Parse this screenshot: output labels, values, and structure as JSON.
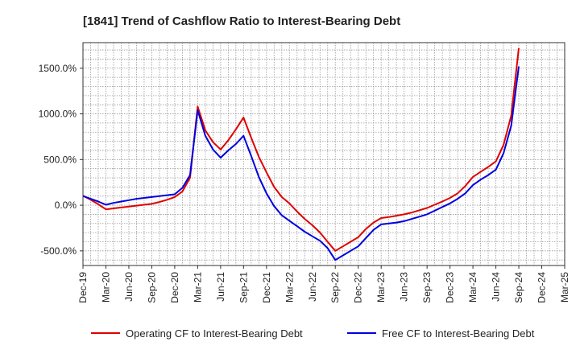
{
  "chart_data": {
    "type": "line",
    "title": "[1841]  Trend of Cashflow Ratio to Interest-Bearing Debt",
    "xlabel": "",
    "ylabel": "",
    "x": [
      "Dec-19",
      "Mar-20",
      "Jun-20",
      "Sep-20",
      "Dec-20",
      "Jan-21",
      "Feb-21",
      "Mar-21",
      "Apr-21",
      "May-21",
      "Jun-21",
      "Sep-21",
      "Dec-21",
      "Mar-22",
      "Jun-22",
      "Sep-22",
      "Dec-22",
      "Mar-23",
      "Jun-23",
      "Sep-23",
      "Dec-23",
      "Mar-24",
      "Jun-24",
      "Jul-24",
      "Aug-24",
      "Sep-24"
    ],
    "x_tick_labels": [
      "Dec-19",
      "Mar-20",
      "Jun-20",
      "Sep-20",
      "Dec-20",
      "Mar-21",
      "Jun-21",
      "Sep-21",
      "Dec-21",
      "Mar-22",
      "Jun-22",
      "Sep-22",
      "Dec-22",
      "Mar-23",
      "Jun-23",
      "Sep-23",
      "Dec-23",
      "Mar-24",
      "Jun-24",
      "Sep-24",
      "Dec-24",
      "Mar-25"
    ],
    "x_range": [
      "Dec-19",
      "Mar-25"
    ],
    "y_ticks": [
      -500,
      0,
      500,
      1000,
      1500
    ],
    "y_tick_labels": [
      "-500.0%",
      "0.0%",
      "500.0%",
      "1000.0%",
      "1500.0%"
    ],
    "ylim": [
      -660,
      1780
    ],
    "grid": true,
    "legend_position": "bottom",
    "series": [
      {
        "name": "Operating CF to Interest-Bearing Debt",
        "color": "#e00000",
        "points": [
          [
            "Dec-19",
            105
          ],
          [
            "Jan-20",
            60
          ],
          [
            "Feb-20",
            10
          ],
          [
            "Mar-20",
            -45
          ],
          [
            "Apr-20",
            -35
          ],
          [
            "May-20",
            -25
          ],
          [
            "Jun-20",
            -15
          ],
          [
            "Jul-20",
            -5
          ],
          [
            "Aug-20",
            5
          ],
          [
            "Sep-20",
            15
          ],
          [
            "Oct-20",
            35
          ],
          [
            "Nov-20",
            60
          ],
          [
            "Dec-20",
            90
          ],
          [
            "Jan-21",
            150
          ],
          [
            "Feb-21",
            300
          ],
          [
            "Mar-21",
            1080
          ],
          [
            "Apr-21",
            820
          ],
          [
            "May-21",
            690
          ],
          [
            "Jun-21",
            610
          ],
          [
            "Jul-21",
            710
          ],
          [
            "Aug-21",
            830
          ],
          [
            "Sep-21",
            960
          ],
          [
            "Oct-21",
            740
          ],
          [
            "Nov-21",
            530
          ],
          [
            "Dec-21",
            360
          ],
          [
            "Jan-22",
            200
          ],
          [
            "Feb-22",
            90
          ],
          [
            "Mar-22",
            20
          ],
          [
            "Apr-22",
            -70
          ],
          [
            "May-22",
            -150
          ],
          [
            "Jun-22",
            -220
          ],
          [
            "Jul-22",
            -300
          ],
          [
            "Aug-22",
            -400
          ],
          [
            "Sep-22",
            -500
          ],
          [
            "Oct-22",
            -450
          ],
          [
            "Nov-22",
            -400
          ],
          [
            "Dec-22",
            -350
          ],
          [
            "Jan-23",
            -260
          ],
          [
            "Feb-23",
            -190
          ],
          [
            "Mar-23",
            -140
          ],
          [
            "Apr-23",
            -130
          ],
          [
            "May-23",
            -115
          ],
          [
            "Jun-23",
            -100
          ],
          [
            "Jul-23",
            -80
          ],
          [
            "Aug-23",
            -55
          ],
          [
            "Sep-23",
            -30
          ],
          [
            "Oct-23",
            5
          ],
          [
            "Nov-23",
            40
          ],
          [
            "Dec-23",
            80
          ],
          [
            "Jan-24",
            130
          ],
          [
            "Feb-24",
            210
          ],
          [
            "Mar-24",
            310
          ],
          [
            "Apr-24",
            365
          ],
          [
            "May-24",
            420
          ],
          [
            "Jun-24",
            480
          ],
          [
            "Jul-24",
            660
          ],
          [
            "Aug-24",
            980
          ],
          [
            "Sep-24",
            1720
          ]
        ]
      },
      {
        "name": "Free CF to Interest-Bearing Debt",
        "color": "#0000e0",
        "points": [
          [
            "Dec-19",
            100
          ],
          [
            "Jan-20",
            70
          ],
          [
            "Feb-20",
            40
          ],
          [
            "Mar-20",
            5
          ],
          [
            "Apr-20",
            25
          ],
          [
            "May-20",
            40
          ],
          [
            "Jun-20",
            55
          ],
          [
            "Jul-20",
            70
          ],
          [
            "Aug-20",
            80
          ],
          [
            "Sep-20",
            90
          ],
          [
            "Oct-20",
            100
          ],
          [
            "Nov-20",
            110
          ],
          [
            "Dec-20",
            120
          ],
          [
            "Jan-21",
            190
          ],
          [
            "Feb-21",
            330
          ],
          [
            "Mar-21",
            1040
          ],
          [
            "Apr-21",
            760
          ],
          [
            "May-21",
            610
          ],
          [
            "Jun-21",
            520
          ],
          [
            "Jul-21",
            600
          ],
          [
            "Aug-21",
            670
          ],
          [
            "Sep-21",
            760
          ],
          [
            "Oct-21",
            540
          ],
          [
            "Nov-21",
            310
          ],
          [
            "Dec-21",
            130
          ],
          [
            "Jan-22",
            -10
          ],
          [
            "Feb-22",
            -110
          ],
          [
            "Mar-22",
            -170
          ],
          [
            "Apr-22",
            -230
          ],
          [
            "May-22",
            -290
          ],
          [
            "Jun-22",
            -340
          ],
          [
            "Jul-22",
            -390
          ],
          [
            "Aug-22",
            -470
          ],
          [
            "Sep-22",
            -600
          ],
          [
            "Oct-22",
            -550
          ],
          [
            "Nov-22",
            -500
          ],
          [
            "Dec-22",
            -450
          ],
          [
            "Jan-23",
            -360
          ],
          [
            "Feb-23",
            -270
          ],
          [
            "Mar-23",
            -210
          ],
          [
            "Apr-23",
            -200
          ],
          [
            "May-23",
            -190
          ],
          [
            "Jun-23",
            -175
          ],
          [
            "Jul-23",
            -150
          ],
          [
            "Aug-23",
            -125
          ],
          [
            "Sep-23",
            -100
          ],
          [
            "Oct-23",
            -60
          ],
          [
            "Nov-23",
            -20
          ],
          [
            "Dec-23",
            20
          ],
          [
            "Jan-24",
            70
          ],
          [
            "Feb-24",
            130
          ],
          [
            "Mar-24",
            220
          ],
          [
            "Apr-24",
            280
          ],
          [
            "May-24",
            330
          ],
          [
            "Jun-24",
            390
          ],
          [
            "Jul-24",
            570
          ],
          [
            "Aug-24",
            870
          ],
          [
            "Sep-24",
            1520
          ]
        ]
      }
    ]
  }
}
